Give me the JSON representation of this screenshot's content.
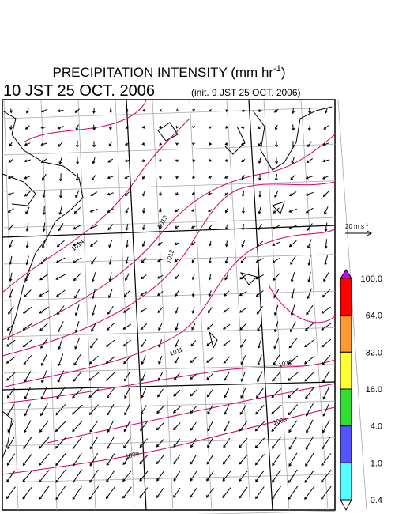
{
  "header": {
    "title": "PRECIPITATION INTENSITY (mm hr",
    "title_exp": "-1",
    "title_close": ")",
    "time": "10 JST 25 OCT. 2006",
    "init": "(init. 9 JST 25 OCT. 2006)"
  },
  "map": {
    "isobar_labels": [
      "1014",
      "1013",
      "1012",
      "1011",
      "1010",
      "1008",
      "1009"
    ],
    "isobar_color": "#d0006f"
  },
  "scale": {
    "label": "20 m s",
    "exp": "-1"
  },
  "colorbar": {
    "labels": [
      "100.0",
      "64.0",
      "32.0",
      "16.0",
      "4.0",
      "1.0",
      "0.4"
    ],
    "colors": [
      "#cc00ff",
      "#ff0000",
      "#ff9933",
      "#ffff33",
      "#33dd33",
      "#5555ff",
      "#55ffff",
      "#ffffff"
    ]
  }
}
